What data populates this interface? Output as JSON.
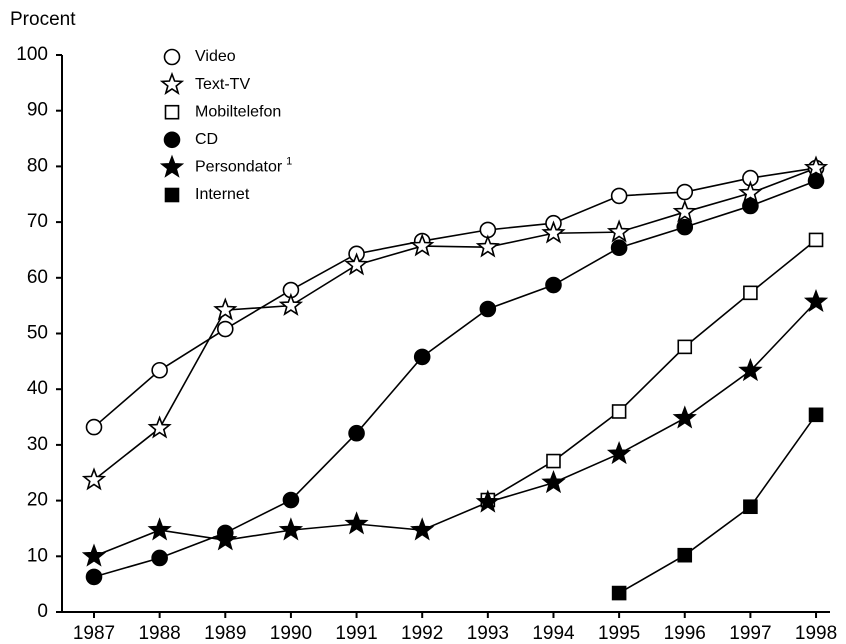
{
  "chart_data": {
    "type": "line",
    "y_label": "Procent",
    "categories": [
      "1987",
      "1988",
      "1989",
      "1990",
      "1991",
      "1992",
      "1993",
      "1994",
      "1995",
      "1996",
      "1997",
      "1998"
    ],
    "ylim": [
      0,
      100
    ],
    "yticks": [
      0,
      10,
      20,
      30,
      40,
      50,
      60,
      70,
      80,
      90,
      100
    ],
    "grid": false,
    "legend": "upper left",
    "series": [
      {
        "name": "Video",
        "color": "#000000",
        "marker": "circle",
        "filled": false,
        "values": [
          33.2,
          43.4,
          50.8,
          57.8,
          64.3,
          66.6,
          68.6,
          69.8,
          74.7,
          75.4,
          77.9,
          79.7
        ]
      },
      {
        "name": "Text-TV",
        "color": "#000000",
        "marker": "star",
        "filled": false,
        "values": [
          23.7,
          33,
          54.2,
          55,
          62.3,
          65.7,
          65.5,
          68,
          68.2,
          71.8,
          75.2,
          79.7
        ]
      },
      {
        "name": "Mobiltelefon",
        "color": "#000000",
        "marker": "square",
        "filled": false,
        "values": [
          null,
          null,
          null,
          null,
          null,
          null,
          20.1,
          27.1,
          36,
          47.6,
          57.3,
          66.8
        ]
      },
      {
        "name": "CD",
        "color": "#000000",
        "marker": "circle",
        "filled": true,
        "values": [
          6.3,
          9.7,
          14.2,
          20.1,
          32.1,
          45.8,
          54.4,
          58.7,
          65.4,
          69.1,
          72.9,
          77.4
        ]
      },
      {
        "name": "Persondator",
        "footnote": "1",
        "color": "#000000",
        "marker": "star",
        "filled": true,
        "values": [
          10,
          14.7,
          12.9,
          14.7,
          15.8,
          14.7,
          19.7,
          23.2,
          28.4,
          34.8,
          43.3,
          55.7
        ]
      },
      {
        "name": "Internet",
        "color": "#000000",
        "marker": "square",
        "filled": true,
        "values": [
          null,
          null,
          null,
          null,
          null,
          null,
          null,
          null,
          3.4,
          10.2,
          18.9,
          35.4
        ]
      }
    ]
  }
}
